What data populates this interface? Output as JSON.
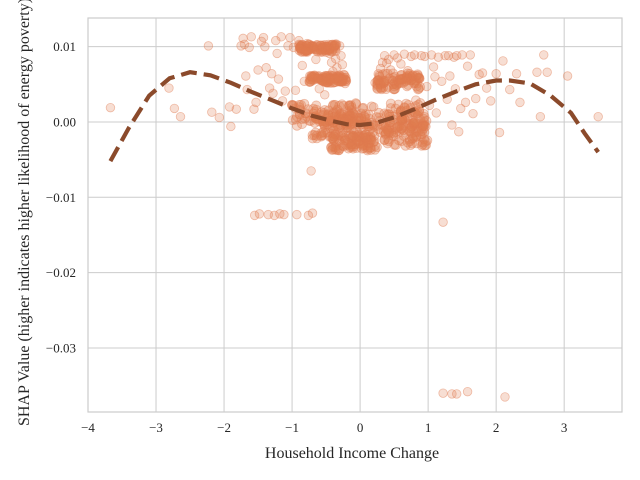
{
  "chart_data": {
    "type": "scatter",
    "title": "",
    "xlabel": "Household Income Change",
    "ylabel": "SHAP Value (higher indicates higher likelihood of energy poverty)",
    "xlim": [
      -4.0,
      3.85
    ],
    "ylim": [
      -0.0385,
      0.0138
    ],
    "xticks": [
      -4,
      -3,
      -2,
      -1,
      0,
      1,
      2,
      3
    ],
    "xtick_labels": [
      "−4",
      "−3",
      "−2",
      "−1",
      "0",
      "1",
      "2",
      "3"
    ],
    "yticks": [
      -0.03,
      -0.02,
      -0.01,
      0.0,
      0.01
    ],
    "ytick_labels": [
      "−0.03",
      "−0.02",
      "−0.01",
      "0.00",
      "0.01"
    ],
    "grid": true,
    "colors": {
      "points": "#e07b4f",
      "trend": "#8b4a2b",
      "grid": "#cccccc",
      "spine": "#cccccc"
    },
    "series": [
      {
        "kind": "points",
        "points": [
          [
            -3.67,
            0.0019
          ],
          [
            -2.81,
            0.0045
          ],
          [
            -2.73,
            0.0018
          ],
          [
            -2.64,
            0.0007
          ],
          [
            -2.23,
            0.0101
          ],
          [
            -2.18,
            0.0013
          ],
          [
            -2.07,
            0.0006
          ],
          [
            -1.92,
            0.002
          ],
          [
            -1.9,
            -0.0006
          ],
          [
            -1.82,
            0.0017
          ],
          [
            -1.75,
            0.0101
          ],
          [
            -1.72,
            0.0111
          ],
          [
            -1.7,
            0.0103
          ],
          [
            -1.68,
            0.0061
          ],
          [
            -1.66,
            0.0043
          ],
          [
            -1.63,
            0.0099
          ],
          [
            -1.6,
            0.0113
          ],
          [
            -1.56,
            0.0017
          ],
          [
            -1.55,
            -0.0124
          ],
          [
            -1.53,
            0.0026
          ],
          [
            -1.5,
            0.0069
          ],
          [
            -1.48,
            -0.0122
          ],
          [
            -1.45,
            0.0107
          ],
          [
            -1.42,
            0.0112
          ],
          [
            -1.4,
            0.01
          ],
          [
            -1.38,
            0.0072
          ],
          [
            -1.35,
            -0.0123
          ],
          [
            -1.33,
            0.0045
          ],
          [
            -1.3,
            0.0064
          ],
          [
            -1.28,
            0.0038
          ],
          [
            -1.26,
            -0.0124
          ],
          [
            -1.24,
            0.0108
          ],
          [
            -1.22,
            0.0091
          ],
          [
            -1.2,
            0.0057
          ],
          [
            -1.18,
            -0.0122
          ],
          [
            -1.16,
            0.0113
          ],
          [
            -1.14,
            0.0028
          ],
          [
            -1.12,
            -0.0123
          ],
          [
            -1.1,
            0.0041
          ],
          [
            -1.06,
            0.0101
          ],
          [
            -1.03,
            0.0112
          ],
          [
            -1.0,
            0.0022
          ],
          [
            -0.98,
            0.0099
          ],
          [
            -0.95,
            0.0042
          ],
          [
            -0.93,
            -0.0123
          ],
          [
            -0.9,
            0.0108
          ],
          [
            -0.88,
            0.0097
          ],
          [
            -0.85,
            0.0075
          ],
          [
            -0.82,
            0.0054
          ],
          [
            -0.8,
            0.0011
          ],
          [
            -0.78,
            0.0104
          ],
          [
            -0.76,
            -0.0124
          ],
          [
            -0.74,
            0.0061
          ],
          [
            -0.72,
            -0.0065
          ],
          [
            -0.7,
            -0.0121
          ],
          [
            -0.68,
            0.01
          ],
          [
            -0.65,
            0.0083
          ],
          [
            -0.62,
            0.0058
          ],
          [
            -0.6,
            0.0044
          ],
          [
            -0.58,
            0.0102
          ],
          [
            -0.55,
            0.0093
          ],
          [
            -0.52,
            0.0036
          ],
          [
            -0.5,
            0.0061
          ],
          [
            -0.48,
            0.01
          ],
          [
            -0.45,
            0.0091
          ],
          [
            -0.42,
            0.0079
          ],
          [
            -0.4,
            0.0067
          ],
          [
            -0.38,
            0.01
          ],
          [
            -0.36,
            0.0084
          ],
          [
            -0.34,
            0.0072
          ],
          [
            -0.32,
            0.0059
          ],
          [
            -0.3,
            0.0101
          ],
          [
            -0.28,
            0.0088
          ],
          [
            -0.26,
            0.0076
          ],
          [
            -0.24,
            0.0063
          ],
          [
            -0.22,
            0.0051
          ],
          [
            0.0,
            -0.0008
          ],
          [
            0.1,
            -0.0024
          ],
          [
            0.2,
            0.002
          ],
          [
            0.22,
            0.0052
          ],
          [
            0.25,
            0.0045
          ],
          [
            0.28,
            0.0062
          ],
          [
            0.3,
            0.0071
          ],
          [
            0.33,
            0.0079
          ],
          [
            0.36,
            0.0088
          ],
          [
            0.39,
            0.0078
          ],
          [
            0.42,
            0.0083
          ],
          [
            0.45,
            0.0069
          ],
          [
            0.48,
            0.0055
          ],
          [
            0.5,
            0.0089
          ],
          [
            0.55,
            0.0085
          ],
          [
            0.6,
            0.0077
          ],
          [
            0.65,
            0.009
          ],
          [
            0.7,
            0.0068
          ],
          [
            0.75,
            0.0087
          ],
          [
            0.8,
            0.0089
          ],
          [
            0.82,
            0.0029
          ],
          [
            0.85,
            0.0062
          ],
          [
            0.9,
            0.0088
          ],
          [
            0.95,
            0.0087
          ],
          [
            0.98,
            0.0047
          ],
          [
            1.02,
            0.0022
          ],
          [
            1.05,
            0.0089
          ],
          [
            1.08,
            0.0073
          ],
          [
            1.1,
            0.006
          ],
          [
            1.12,
            0.0012
          ],
          [
            1.15,
            0.0086
          ],
          [
            1.2,
            0.0054
          ],
          [
            1.22,
            -0.0133
          ],
          [
            1.25,
            0.0088
          ],
          [
            1.28,
            0.003
          ],
          [
            1.3,
            0.0088
          ],
          [
            1.32,
            0.0061
          ],
          [
            1.35,
            -0.0004
          ],
          [
            1.38,
            0.0086
          ],
          [
            1.4,
            0.0044
          ],
          [
            1.42,
            0.0088
          ],
          [
            1.45,
            -0.0013
          ],
          [
            1.48,
            0.0018
          ],
          [
            1.5,
            0.0089
          ],
          [
            1.55,
            0.0026
          ],
          [
            1.58,
            0.0074
          ],
          [
            1.62,
            0.0089
          ],
          [
            1.66,
            0.0011
          ],
          [
            1.7,
            0.0031
          ],
          [
            1.75,
            0.0063
          ],
          [
            1.8,
            0.0065
          ],
          [
            1.86,
            0.0045
          ],
          [
            1.92,
            0.0028
          ],
          [
            2.0,
            0.0064
          ],
          [
            2.05,
            -0.0014
          ],
          [
            2.1,
            0.0081
          ],
          [
            2.2,
            0.0043
          ],
          [
            2.3,
            0.0064
          ],
          [
            2.35,
            0.0026
          ],
          [
            2.6,
            0.0066
          ],
          [
            2.65,
            0.0007
          ],
          [
            2.7,
            0.0089
          ],
          [
            2.75,
            0.0066
          ],
          [
            3.05,
            0.0061
          ],
          [
            3.5,
            0.0007
          ],
          [
            1.22,
            -0.036
          ],
          [
            1.35,
            -0.0361
          ],
          [
            1.42,
            -0.0361
          ],
          [
            1.58,
            -0.0358
          ],
          [
            2.13,
            -0.0365
          ]
        ],
        "dense_bands": [
          {
            "x": [
              -1.0,
              -0.05
            ],
            "y": [
              -0.0005,
              0.0025
            ]
          },
          {
            "x": [
              -0.7,
              0.05
            ],
            "y": [
              -0.0022,
              0.0012
            ]
          },
          {
            "x": [
              -0.45,
              0.25
            ],
            "y": [
              -0.0038,
              -0.0016
            ]
          },
          {
            "x": [
              0.02,
              0.95
            ],
            "y": [
              -0.0015,
              0.0025
            ]
          },
          {
            "x": [
              0.25,
              0.9
            ],
            "y": [
              0.0043,
              0.0065
            ]
          },
          {
            "x": [
              0.35,
              1.0
            ],
            "y": [
              -0.0032,
              0.0005
            ]
          },
          {
            "x": [
              -0.75,
              -0.2
            ],
            "y": [
              0.0052,
              0.0062
            ]
          },
          {
            "x": [
              -0.9,
              -0.35
            ],
            "y": [
              0.0093,
              0.0103
            ]
          }
        ]
      },
      {
        "kind": "trend",
        "style": "dashed",
        "points": [
          [
            -3.67,
            -0.0052
          ],
          [
            -3.4,
            -0.0008
          ],
          [
            -3.1,
            0.0035
          ],
          [
            -2.8,
            0.0058
          ],
          [
            -2.5,
            0.0066
          ],
          [
            -2.2,
            0.0062
          ],
          [
            -1.9,
            0.0052
          ],
          [
            -1.6,
            0.004
          ],
          [
            -1.3,
            0.0029
          ],
          [
            -1.0,
            0.0018
          ],
          [
            -0.7,
            0.0008
          ],
          [
            -0.4,
            0.0001
          ],
          [
            -0.2,
            -0.0003
          ],
          [
            0.0,
            -0.0004
          ],
          [
            0.2,
            -0.0002
          ],
          [
            0.5,
            0.0006
          ],
          [
            0.8,
            0.0017
          ],
          [
            1.1,
            0.0029
          ],
          [
            1.4,
            0.004
          ],
          [
            1.7,
            0.005
          ],
          [
            2.0,
            0.0055
          ],
          [
            2.2,
            0.0055
          ],
          [
            2.5,
            0.0051
          ],
          [
            2.8,
            0.0035
          ],
          [
            3.1,
            0.0012
          ],
          [
            3.3,
            -0.0015
          ],
          [
            3.5,
            -0.004
          ]
        ]
      }
    ]
  }
}
